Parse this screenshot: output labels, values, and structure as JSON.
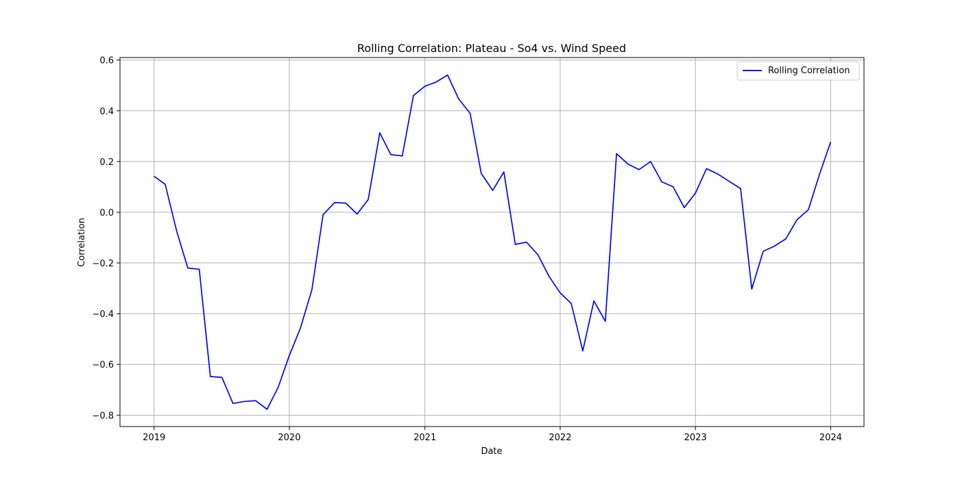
{
  "colors": {
    "series": "#0000ff",
    "grid": "#b0b0b0",
    "axes": "#000000",
    "background": "#ffffff"
  },
  "chart_data": {
    "type": "line",
    "title": "Rolling Correlation: Plateau - So4 vs. Wind Speed",
    "xlabel": "Date",
    "ylabel": "Correlation",
    "xlim": [
      "2018-10-01",
      "2024-03-31"
    ],
    "ylim": [
      -0.845,
      0.61
    ],
    "x_ticks": [
      "2019",
      "2020",
      "2021",
      "2022",
      "2023",
      "2024"
    ],
    "y_ticks": [
      "−0.8",
      "−0.6",
      "−0.4",
      "−0.2",
      "0.0",
      "0.2",
      "0.4",
      "0.6"
    ],
    "grid": true,
    "legend": {
      "position": "top-right",
      "entries": [
        "Rolling Correlation"
      ]
    },
    "series": [
      {
        "name": "Rolling Correlation",
        "color": "#0000ff",
        "x": [
          "2019-01-01",
          "2019-01-31",
          "2019-03-03",
          "2019-04-02",
          "2019-05-03",
          "2019-06-02",
          "2019-07-03",
          "2019-08-02",
          "2019-09-02",
          "2019-10-02",
          "2019-11-02",
          "2019-12-02",
          "2020-01-01",
          "2020-01-31",
          "2020-03-02",
          "2020-04-01",
          "2020-05-02",
          "2020-06-01",
          "2020-07-02",
          "2020-08-01",
          "2020-09-01",
          "2020-10-01",
          "2020-11-01",
          "2020-12-01",
          "2021-01-01",
          "2021-01-31",
          "2021-03-03",
          "2021-04-02",
          "2021-05-03",
          "2021-06-02",
          "2021-07-03",
          "2021-08-02",
          "2021-09-02",
          "2021-10-02",
          "2021-11-02",
          "2021-12-02",
          "2022-01-01",
          "2022-01-31",
          "2022-03-03",
          "2022-04-02",
          "2022-05-03",
          "2022-06-02",
          "2022-07-03",
          "2022-08-02",
          "2022-09-02",
          "2022-10-02",
          "2022-11-02",
          "2022-12-02",
          "2023-01-01",
          "2023-01-31",
          "2023-03-03",
          "2023-04-02",
          "2023-05-03",
          "2023-06-02",
          "2023-07-03",
          "2023-08-02",
          "2023-09-02",
          "2023-10-02",
          "2023-11-02",
          "2023-12-02",
          "2024-01-01"
        ],
        "values": [
          0.142,
          0.11,
          -0.075,
          -0.22,
          -0.225,
          -0.648,
          -0.651,
          -0.754,
          -0.746,
          -0.743,
          -0.777,
          -0.69,
          -0.565,
          -0.457,
          -0.305,
          -0.01,
          0.038,
          0.036,
          -0.007,
          0.05,
          0.313,
          0.227,
          0.222,
          0.46,
          0.497,
          0.513,
          0.541,
          0.447,
          0.39,
          0.153,
          0.086,
          0.159,
          -0.127,
          -0.118,
          -0.168,
          -0.253,
          -0.318,
          -0.36,
          -0.547,
          -0.35,
          -0.43,
          0.231,
          0.19,
          0.168,
          0.2,
          0.12,
          0.1,
          0.018,
          0.075,
          0.172,
          0.15,
          0.122,
          0.093,
          -0.303,
          -0.154,
          -0.134,
          -0.105,
          -0.03,
          0.01,
          0.15,
          0.277
        ]
      }
    ]
  }
}
